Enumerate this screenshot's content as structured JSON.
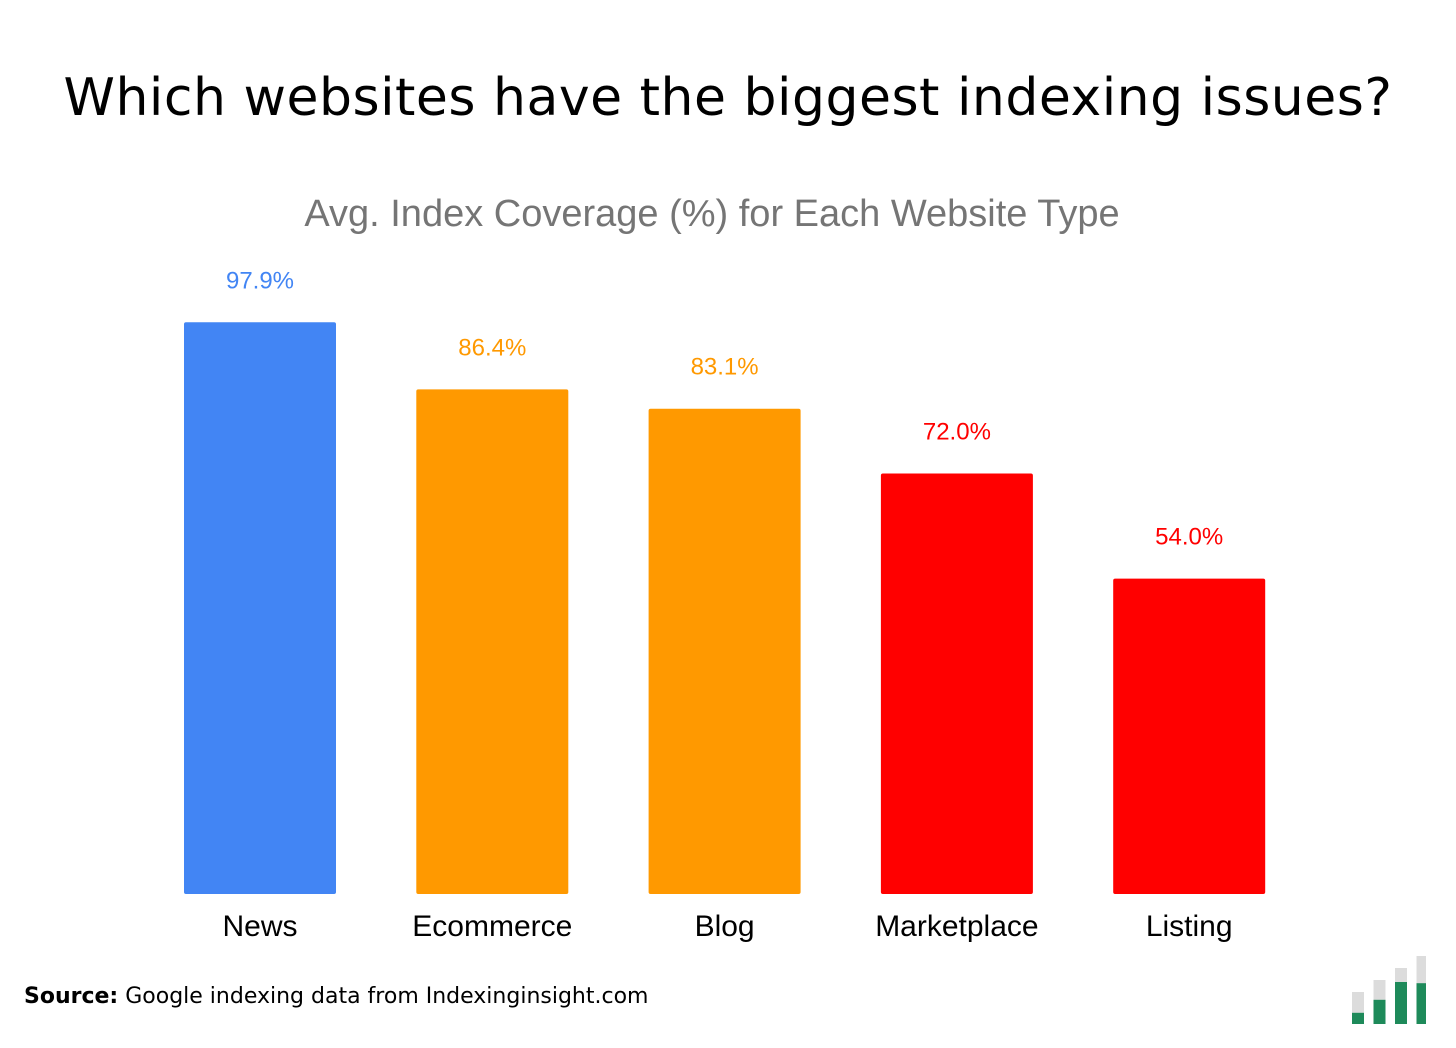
{
  "headline": "Which websites have the biggest indexing issues?",
  "source": {
    "label": "Source:",
    "text": "Google indexing data from Indexinginsight.com"
  },
  "logo": {
    "icon": "bar-chart-logo-icon",
    "colors": {
      "filled": "#1e8a5a",
      "track": "#dcdcdc"
    },
    "levels": [
      0.35,
      0.55,
      0.75,
      0.6
    ]
  },
  "chart_data": {
    "type": "bar",
    "title": "Avg. Index Coverage (%) for Each Website Type",
    "xlabel": "",
    "ylabel": "",
    "ylim": [
      0,
      100
    ],
    "grid": false,
    "legend": "none",
    "categories": [
      "News",
      "Ecommerce",
      "Blog",
      "Marketplace",
      "Listing"
    ],
    "values": [
      97.9,
      86.4,
      83.1,
      72.0,
      54.0
    ],
    "value_labels": [
      "97.9%",
      "86.4%",
      "83.1%",
      "72.0%",
      "54.0%"
    ],
    "colors": [
      "#4285f4",
      "#ff9900",
      "#ff9900",
      "#ff0000",
      "#ff0000"
    ]
  }
}
